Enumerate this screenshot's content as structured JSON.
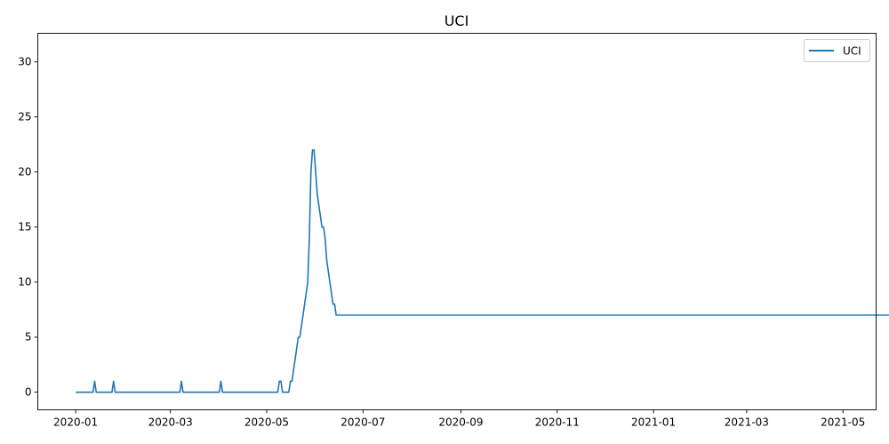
{
  "chart_data": {
    "type": "line",
    "title": "UCI",
    "xlabel": "",
    "ylabel": "",
    "xlim": [
      "2019-12-08",
      "2021-05-22"
    ],
    "ylim": [
      -1.6,
      32.6
    ],
    "x_ticks": [
      "2020-01",
      "2020-03",
      "2020-05",
      "2020-07",
      "2020-09",
      "2020-11",
      "2021-01",
      "2021-03",
      "2021-05"
    ],
    "y_ticks": [
      0,
      5,
      10,
      15,
      20,
      25,
      30
    ],
    "legend": {
      "position": "top-right",
      "entries": [
        "UCI"
      ]
    },
    "grid": false,
    "series": [
      {
        "name": "UCI",
        "color": "#1f77b4",
        "x_start": "2020-01-01",
        "x_end": "2021-04-29",
        "values": [
          0,
          0,
          0,
          0,
          0,
          0,
          0,
          0,
          0,
          0,
          0,
          0,
          1,
          0,
          0,
          0,
          0,
          0,
          0,
          0,
          0,
          0,
          0,
          0,
          1,
          0,
          0,
          0,
          0,
          0,
          0,
          0,
          0,
          0,
          0,
          0,
          0,
          0,
          0,
          0,
          0,
          0,
          0,
          0,
          0,
          0,
          0,
          0,
          0,
          0,
          0,
          0,
          0,
          0,
          0,
          0,
          0,
          0,
          0,
          0,
          0,
          0,
          0,
          0,
          0,
          0,
          0,
          1,
          0,
          0,
          0,
          0,
          0,
          0,
          0,
          0,
          0,
          0,
          0,
          0,
          0,
          0,
          0,
          0,
          0,
          0,
          0,
          0,
          0,
          0,
          0,
          0,
          1,
          0,
          0,
          0,
          0,
          0,
          0,
          0,
          0,
          0,
          0,
          0,
          0,
          0,
          0,
          0,
          0,
          0,
          0,
          0,
          0,
          0,
          0,
          0,
          0,
          0,
          0,
          0,
          0,
          0,
          0,
          0,
          0,
          0,
          0,
          0,
          0,
          1,
          1,
          0,
          0,
          0,
          0,
          0,
          1,
          1,
          2,
          3,
          4,
          5,
          5,
          6,
          7,
          8,
          9,
          10,
          14,
          20,
          22,
          22,
          20,
          18,
          17,
          16,
          15,
          15,
          14,
          12,
          11,
          10,
          9,
          8,
          8,
          7,
          7,
          7,
          7,
          7,
          7,
          7,
          7,
          7,
          7,
          7,
          7,
          7,
          7,
          7,
          7,
          7,
          7,
          7,
          7,
          7,
          7,
          7,
          7,
          7,
          7,
          7,
          7,
          7,
          7,
          7,
          7,
          7,
          7,
          7,
          7,
          7,
          7,
          7,
          7,
          7,
          7,
          7,
          7,
          7,
          7,
          7,
          7,
          7,
          7,
          7,
          7,
          7,
          7,
          7,
          7,
          7,
          7,
          7,
          7,
          7,
          7,
          7,
          7,
          7,
          7,
          7,
          7,
          7,
          7,
          7,
          7,
          7,
          7,
          7,
          7,
          7,
          7,
          7,
          7,
          7,
          7,
          7,
          7,
          7,
          7,
          7,
          7,
          7,
          7,
          7,
          7,
          7,
          7,
          7,
          7,
          7,
          7,
          7,
          7,
          7,
          7,
          7,
          7,
          7,
          7,
          7,
          7,
          7,
          7,
          7,
          7,
          7,
          7,
          7,
          7,
          7,
          7,
          7,
          7,
          7,
          7,
          7,
          7,
          7,
          7,
          7,
          7,
          7,
          7,
          7,
          7,
          7,
          7,
          7,
          7,
          7,
          7,
          7,
          7,
          7,
          7,
          7,
          7,
          7,
          7,
          7,
          7,
          7,
          7,
          7,
          7,
          7,
          7,
          7,
          7,
          7,
          7,
          7,
          7,
          7,
          7,
          7,
          7,
          7,
          7,
          7,
          7,
          7,
          7,
          7,
          7,
          7,
          7,
          7,
          7,
          7,
          7,
          7,
          7,
          7,
          7,
          7,
          7,
          7,
          7,
          7,
          7,
          7,
          7,
          7,
          7,
          7,
          7,
          7,
          7,
          7,
          7,
          7,
          7,
          7,
          7,
          7,
          7,
          7,
          7,
          7,
          7,
          7,
          7,
          7,
          7,
          7,
          7,
          7,
          7,
          7,
          7,
          7,
          7,
          7,
          7,
          7,
          7,
          7,
          7,
          7,
          7,
          7,
          7,
          7,
          7,
          7,
          7,
          7,
          7,
          7,
          7,
          7,
          7,
          7,
          7,
          7,
          7,
          7,
          7,
          7,
          7,
          7,
          7,
          7,
          7,
          7,
          7,
          7,
          7,
          7,
          7,
          7,
          7,
          7,
          7,
          7,
          7,
          7,
          7,
          7,
          7,
          7,
          7,
          7,
          7,
          7,
          7,
          7,
          7,
          7,
          7,
          7,
          7,
          7,
          7,
          7,
          7,
          7,
          7,
          7,
          7,
          7,
          7,
          7,
          7,
          7,
          7,
          7,
          7,
          7,
          7,
          7,
          7,
          7,
          7,
          7,
          7,
          7,
          7,
          7,
          7,
          7,
          7,
          7,
          7,
          7,
          7,
          7,
          7,
          7,
          7,
          7,
          7,
          7,
          7,
          7,
          7,
          7,
          7,
          7,
          7,
          7,
          7,
          7,
          7,
          7,
          7,
          7,
          7,
          7,
          7,
          7,
          7,
          7,
          7,
          7,
          7,
          7,
          7,
          7,
          7,
          7,
          7,
          7,
          7,
          7,
          7,
          7,
          7,
          7,
          7,
          7,
          7,
          7,
          7,
          7,
          7,
          7,
          7,
          7,
          7,
          7,
          7,
          7,
          7,
          7,
          7,
          7,
          7
        ]
      }
    ]
  }
}
